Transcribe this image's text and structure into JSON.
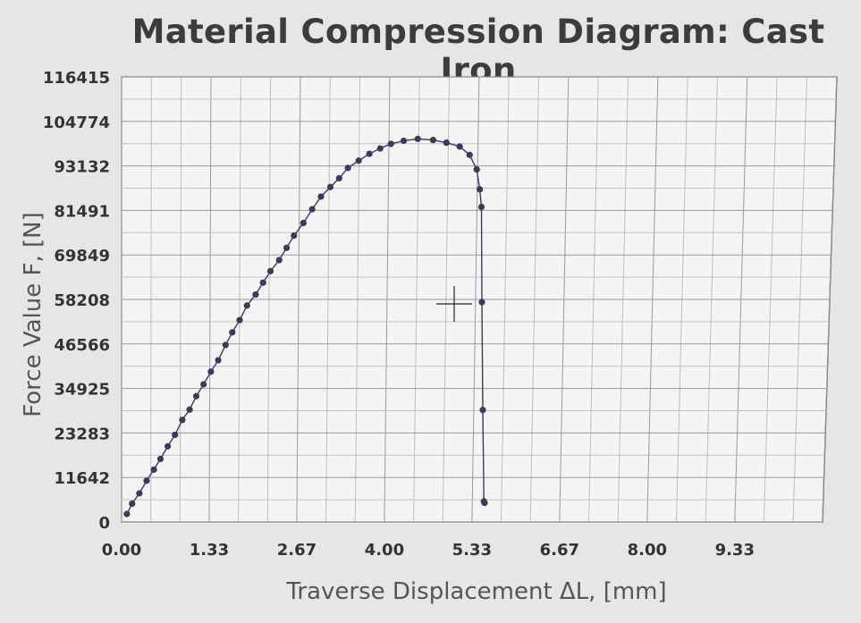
{
  "chart_data": {
    "type": "line",
    "title": "Material Compression Diagram: Cast Iron",
    "xlabel": "Traverse Displacement ΔL, [mm]",
    "ylabel": "Force Value F, [N]",
    "xlim": [
      0,
      10.67
    ],
    "ylim": [
      0,
      116415
    ],
    "x_ticks": [
      "0.00",
      "1.33",
      "2.67",
      "4.00",
      "5.33",
      "6.67",
      "8.00",
      "9.33"
    ],
    "y_ticks": [
      "0",
      "11642",
      "23283",
      "34925",
      "46566",
      "58208",
      "69849",
      "81491",
      "93132",
      "104774",
      "116415"
    ],
    "grid": true,
    "legend": "none",
    "series": [
      {
        "color": "#3a3a5c",
        "x": [
          0.08,
          0.16,
          0.27,
          0.38,
          0.49,
          0.59,
          0.7,
          0.81,
          0.92,
          1.03,
          1.13,
          1.24,
          1.35,
          1.46,
          1.57,
          1.67,
          1.78,
          1.89,
          2.02,
          2.13,
          2.24,
          2.37,
          2.48,
          2.59,
          2.73,
          2.86,
          2.99,
          3.13,
          3.26,
          3.39,
          3.55,
          3.71,
          3.87,
          4.03,
          4.22,
          4.43,
          4.66,
          4.86,
          5.06,
          5.21,
          5.32,
          5.37,
          5.4,
          5.43,
          5.47,
          5.51,
          5.52
        ],
        "y": [
          2100,
          4800,
          7500,
          10800,
          13700,
          16500,
          19800,
          22800,
          26700,
          29400,
          32900,
          36000,
          39300,
          42300,
          46300,
          49600,
          52800,
          56600,
          59500,
          62600,
          65600,
          68500,
          71700,
          74900,
          78200,
          81800,
          85100,
          87600,
          89900,
          92600,
          94500,
          96300,
          97700,
          98900,
          99700,
          100200,
          99900,
          99200,
          98200,
          96000,
          92200,
          87000,
          82400,
          57500,
          29300,
          5400,
          5000
        ]
      }
    ]
  }
}
